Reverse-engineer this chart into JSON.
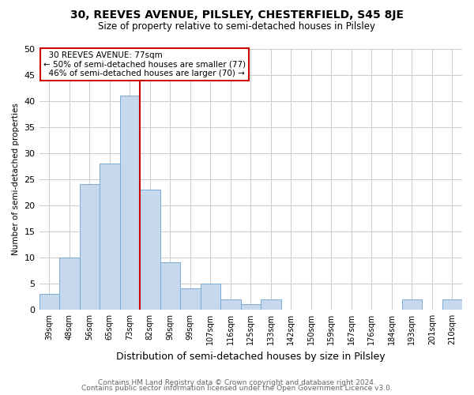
{
  "title1": "30, REEVES AVENUE, PILSLEY, CHESTERFIELD, S45 8JE",
  "title2": "Size of property relative to semi-detached houses in Pilsley",
  "xlabel": "Distribution of semi-detached houses by size in Pilsley",
  "ylabel": "Number of semi-detached properties",
  "categories": [
    "39sqm",
    "48sqm",
    "56sqm",
    "65sqm",
    "73sqm",
    "82sqm",
    "90sqm",
    "99sqm",
    "107sqm",
    "116sqm",
    "125sqm",
    "133sqm",
    "142sqm",
    "150sqm",
    "159sqm",
    "167sqm",
    "176sqm",
    "184sqm",
    "193sqm",
    "201sqm",
    "210sqm"
  ],
  "values": [
    3,
    10,
    24,
    28,
    41,
    23,
    9,
    4,
    5,
    2,
    1,
    2,
    0,
    0,
    0,
    0,
    0,
    0,
    2,
    0,
    2
  ],
  "bar_color": "#c5d8ed",
  "bar_edge_color": "#7aadd4",
  "property_label": "30 REEVES AVENUE: 77sqm",
  "pct_smaller": 50,
  "pct_smaller_count": 77,
  "pct_larger": 46,
  "pct_larger_count": 70,
  "redline_x": 4.5,
  "ylim": [
    0,
    50
  ],
  "yticks": [
    0,
    5,
    10,
    15,
    20,
    25,
    30,
    35,
    40,
    45,
    50
  ],
  "footer1": "Contains HM Land Registry data © Crown copyright and database right 2024.",
  "footer2": "Contains public sector information licensed under the Open Government Licence v3.0.",
  "background_color": "#ffffff",
  "grid_color": "#cccccc",
  "annotation_box_color": "#ffffff",
  "annotation_box_edge": "#cc0000",
  "redline_color": "#cc0000",
  "title1_fontsize": 10,
  "title2_fontsize": 8.5,
  "ylabel_fontsize": 7.5,
  "xlabel_fontsize": 9,
  "tick_fontsize": 8,
  "xtick_fontsize": 7,
  "ann_fontsize": 7.5,
  "footer_fontsize": 6.5,
  "footer_color": "#666666"
}
